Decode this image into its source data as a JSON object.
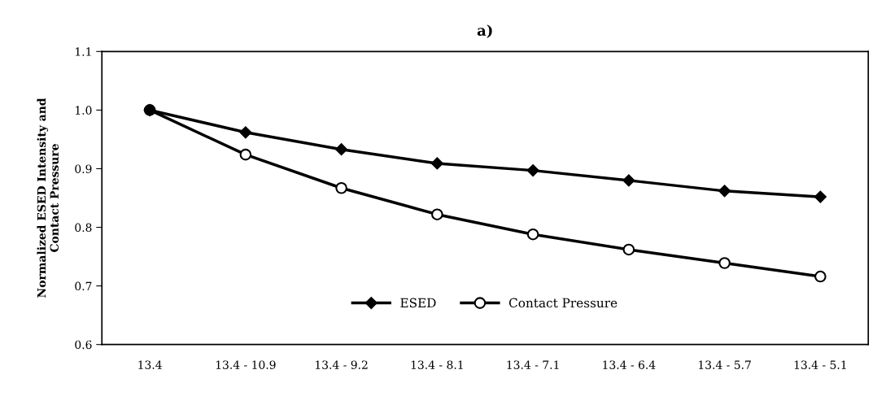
{
  "chart_data": {
    "type": "line",
    "title": "a)",
    "ylabel": "Normalized ESED Intensity and\nContact Pressure",
    "categories": [
      "13.4",
      "13.4 - 10.9",
      "13.4 - 9.2",
      "13.4 - 8.1",
      "13.4 - 7.1",
      "13.4 - 6.4",
      "13.4 - 5.7",
      "13.4 - 5.1"
    ],
    "series": [
      {
        "name": "ESED",
        "color": "#000000",
        "marker": "diamond",
        "values": [
          1.0,
          0.962,
          0.933,
          0.909,
          0.897,
          0.88,
          0.862,
          0.852
        ]
      },
      {
        "name": "Contact Pressure",
        "color": "#000000",
        "marker": "circle",
        "values": [
          1.0,
          0.924,
          0.867,
          0.822,
          0.788,
          0.762,
          0.739,
          0.716
        ]
      }
    ],
    "ylim": [
      0.6,
      1.1
    ],
    "yticks": [
      {
        "value": 0.6,
        "label": "0.6"
      },
      {
        "value": 0.7,
        "label": "0.7"
      },
      {
        "value": 0.8,
        "label": "0.8"
      },
      {
        "value": 0.9,
        "label": "0.9"
      },
      {
        "value": 1.0,
        "label": "1.0"
      },
      {
        "value": 1.1,
        "label": "1.1"
      }
    ],
    "grid": false,
    "legend": "bottom",
    "line_style": "solid"
  }
}
